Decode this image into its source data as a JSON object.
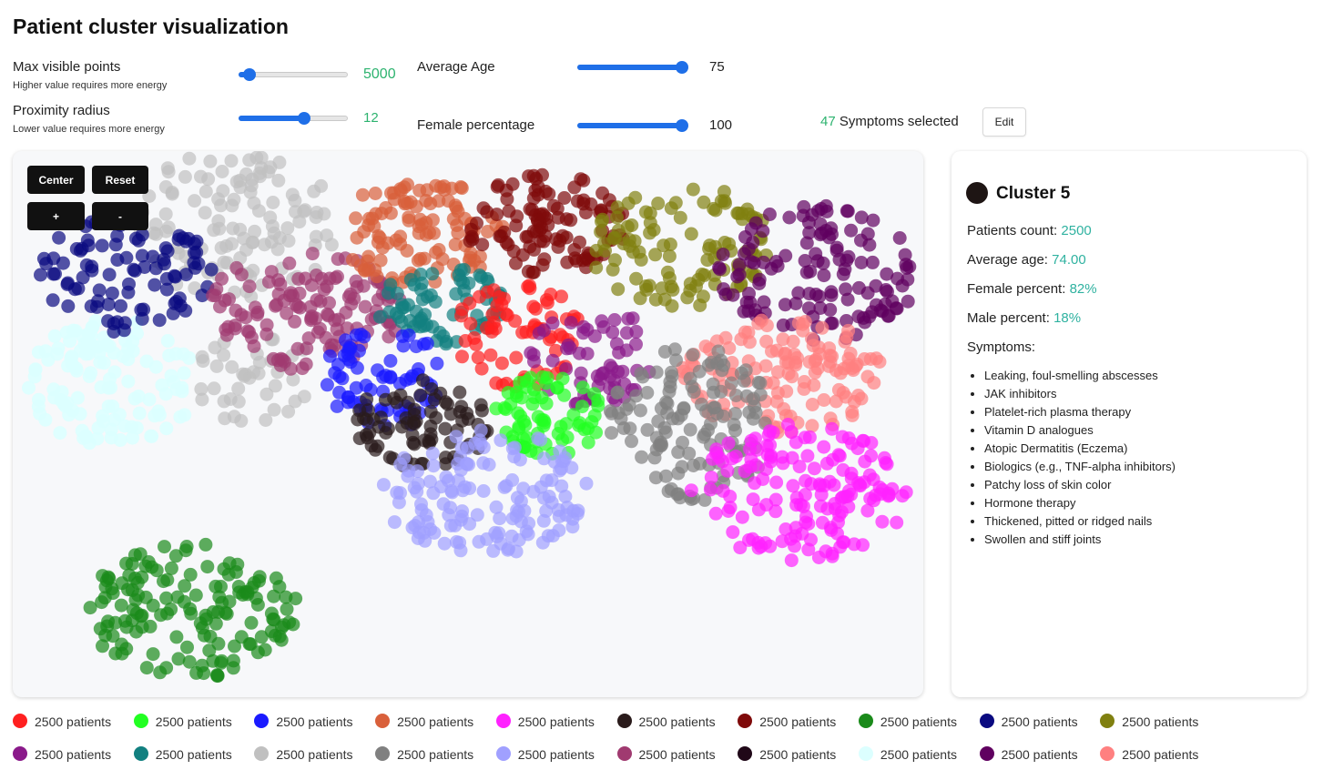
{
  "title": "Patient cluster visualization",
  "controls": {
    "max_points": {
      "label": "Max visible points",
      "sublabel": "Higher value requires more energy",
      "value": "5000",
      "level": 0.1
    },
    "proximity": {
      "label": "Proximity radius",
      "sublabel": "Lower value requires more energy",
      "value": "12",
      "level": 0.6
    },
    "avg_age": {
      "label": "Average Age",
      "value": "75",
      "level": 1.0
    },
    "female_pct": {
      "label": "Female percentage",
      "value": "100",
      "level": 1.0
    },
    "symptoms": {
      "count": "47",
      "label": "Symptoms selected",
      "edit_label": "Edit"
    }
  },
  "plot_controls": {
    "center": "Center",
    "reset": "Reset",
    "zoom_in": "+",
    "zoom_out": "-"
  },
  "selected_cluster": {
    "name": "Cluster 5",
    "color": "#1e1514",
    "patients_count_label": "Patients count:",
    "patients_count": "2500",
    "average_age_label": "Average age:",
    "average_age": "74.00",
    "female_percent_label": "Female percent:",
    "female_percent": "82%",
    "male_percent_label": "Male percent:",
    "male_percent": "18%",
    "symptoms_label": "Symptoms:",
    "symptoms": [
      "Leaking, foul-smelling abscesses",
      "JAK inhibitors",
      "Platelet-rich plasma therapy",
      "Vitamin D analogues",
      "Atopic Dermatitis (Eczema)",
      "Biologics (e.g., TNF-alpha inhibitors)",
      "Patchy loss of skin color",
      "Hormone therapy",
      "Thickened, pitted or ridged nails",
      "Swollen and stiff joints"
    ]
  },
  "legend": [
    {
      "label": "2500 patients",
      "color": "#ff2020"
    },
    {
      "label": "2500 patients",
      "color": "#22ff22"
    },
    {
      "label": "2500 patients",
      "color": "#1a1aff"
    },
    {
      "label": "2500 patients",
      "color": "#d9603b"
    },
    {
      "label": "2500 patients",
      "color": "#ff22ff"
    },
    {
      "label": "2500 patients",
      "color": "#2a1b1b"
    },
    {
      "label": "2500 patients",
      "color": "#7f0a0a"
    },
    {
      "label": "2500 patients",
      "color": "#1a8a1a"
    },
    {
      "label": "2500 patients",
      "color": "#0a0a80"
    },
    {
      "label": "2500 patients",
      "color": "#808010"
    },
    {
      "label": "2500 patients",
      "color": "#8a1a8a"
    },
    {
      "label": "2500 patients",
      "color": "#128080"
    },
    {
      "label": "2500 patients",
      "color": "#c0c0c0"
    },
    {
      "label": "2500 patients",
      "color": "#808080"
    },
    {
      "label": "2500 patients",
      "color": "#a0a0ff"
    },
    {
      "label": "2500 patients",
      "color": "#a03a70"
    },
    {
      "label": "2500 patients",
      "color": "#200818"
    },
    {
      "label": "2500 patients",
      "color": "#dcffff"
    },
    {
      "label": "2500 patients",
      "color": "#600060"
    },
    {
      "label": "2500 patients",
      "color": "#ff8080"
    }
  ]
}
